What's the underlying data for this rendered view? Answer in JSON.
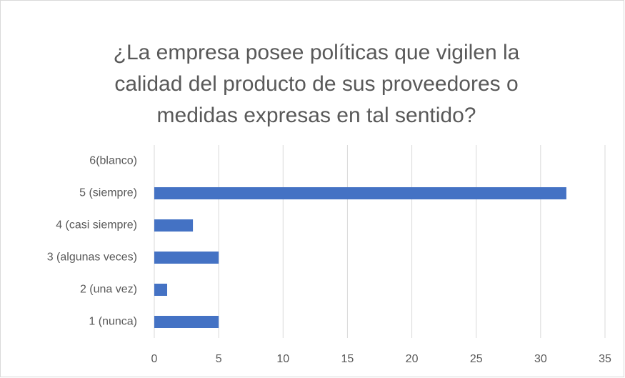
{
  "chart_data": {
    "type": "bar",
    "orientation": "horizontal",
    "title": [
      "¿La empresa posee políticas que vigilen la",
      "calidad del producto de sus proveedores o",
      "medidas expresas en tal sentido?"
    ],
    "categories": [
      "1 (nunca)",
      "2 (una vez)",
      "3 (algunas veces)",
      "4 (casi siempre)",
      "5 (siempre)",
      "6(blanco)"
    ],
    "values": [
      5,
      1,
      5,
      3,
      32,
      0
    ],
    "color": "#4472c4",
    "xlim": [
      0,
      35
    ],
    "xticks": [
      0,
      5,
      10,
      15,
      20,
      25,
      30,
      35
    ],
    "grid": true
  }
}
